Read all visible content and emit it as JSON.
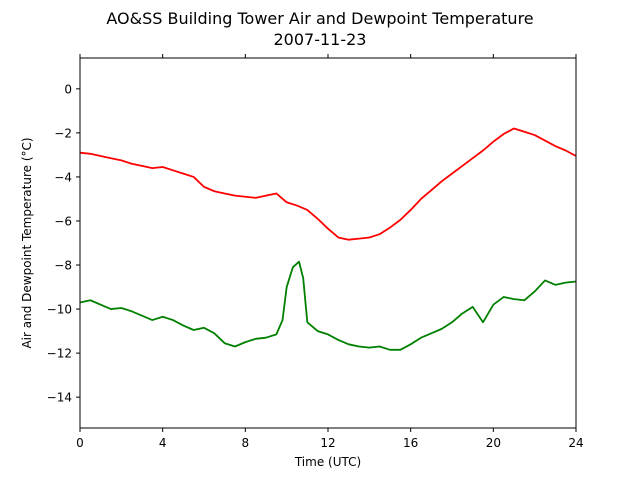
{
  "chart_data": {
    "type": "line",
    "title": "AO&SS Building Tower Air and Dewpoint Temperature",
    "subtitle": "2007-11-23",
    "xlabel": "Time (UTC)",
    "ylabel": "Air and Dewpoint Temperature (°C)",
    "xlim": [
      0,
      24
    ],
    "ylim": [
      -15.4,
      1.4
    ],
    "xticks": [
      0,
      4,
      8,
      12,
      16,
      20,
      24
    ],
    "yticks": [
      0,
      -2,
      -4,
      -6,
      -8,
      -10,
      -12,
      -14
    ],
    "grid": false,
    "series": [
      {
        "color": "#ff0000",
        "x": [
          0,
          0.5,
          1,
          1.5,
          2,
          2.5,
          3,
          3.5,
          4,
          4.5,
          5,
          5.5,
          6,
          6.5,
          7,
          7.5,
          8,
          8.5,
          9,
          9.5,
          10,
          10.5,
          11,
          11.5,
          12,
          12.5,
          13,
          13.5,
          14,
          14.5,
          15,
          15.5,
          16,
          16.5,
          17,
          17.5,
          18,
          18.5,
          19,
          19.5,
          20,
          20.5,
          21,
          21.5,
          22,
          22.5,
          23,
          23.5,
          24
        ],
        "y": [
          -2.9,
          -2.95,
          -3.05,
          -3.15,
          -3.25,
          -3.4,
          -3.5,
          -3.6,
          -3.55,
          -3.7,
          -3.85,
          -4.0,
          -4.45,
          -4.65,
          -4.75,
          -4.85,
          -4.9,
          -4.95,
          -4.85,
          -4.75,
          -5.15,
          -5.3,
          -5.5,
          -5.9,
          -6.35,
          -6.75,
          -6.85,
          -6.8,
          -6.75,
          -6.6,
          -6.3,
          -5.95,
          -5.5,
          -5.0,
          -4.6,
          -4.2,
          -3.85,
          -3.5,
          -3.15,
          -2.8,
          -2.4,
          -2.05,
          -1.8,
          -1.95,
          -2.1,
          -2.35,
          -2.6,
          -2.8,
          -3.05
        ]
      },
      {
        "color": "#008000",
        "x": [
          0,
          0.5,
          1,
          1.5,
          2,
          2.5,
          3,
          3.5,
          4,
          4.5,
          5,
          5.5,
          6,
          6.5,
          7,
          7.5,
          8,
          8.5,
          9,
          9.5,
          9.8,
          10,
          10.3,
          10.6,
          10.8,
          11,
          11.5,
          12,
          12.5,
          13,
          13.5,
          14,
          14.5,
          15,
          15.5,
          16,
          16.5,
          17,
          17.5,
          18,
          18.5,
          19,
          19.5,
          20,
          20.5,
          21,
          21.5,
          22,
          22.5,
          23,
          23.5,
          24
        ],
        "y": [
          -9.7,
          -9.6,
          -9.8,
          -10.0,
          -9.95,
          -10.1,
          -10.3,
          -10.5,
          -10.35,
          -10.5,
          -10.75,
          -10.95,
          -10.85,
          -11.1,
          -11.55,
          -11.7,
          -11.5,
          -11.35,
          -11.3,
          -11.15,
          -10.5,
          -9.0,
          -8.1,
          -7.85,
          -8.6,
          -10.6,
          -11.0,
          -11.15,
          -11.4,
          -11.6,
          -11.7,
          -11.75,
          -11.7,
          -11.85,
          -11.85,
          -11.6,
          -11.3,
          -11.1,
          -10.9,
          -10.6,
          -10.2,
          -9.9,
          -10.6,
          -9.8,
          -9.45,
          -9.55,
          -9.6,
          -9.2,
          -8.7,
          -8.9,
          -8.8,
          -8.75
        ]
      }
    ]
  }
}
